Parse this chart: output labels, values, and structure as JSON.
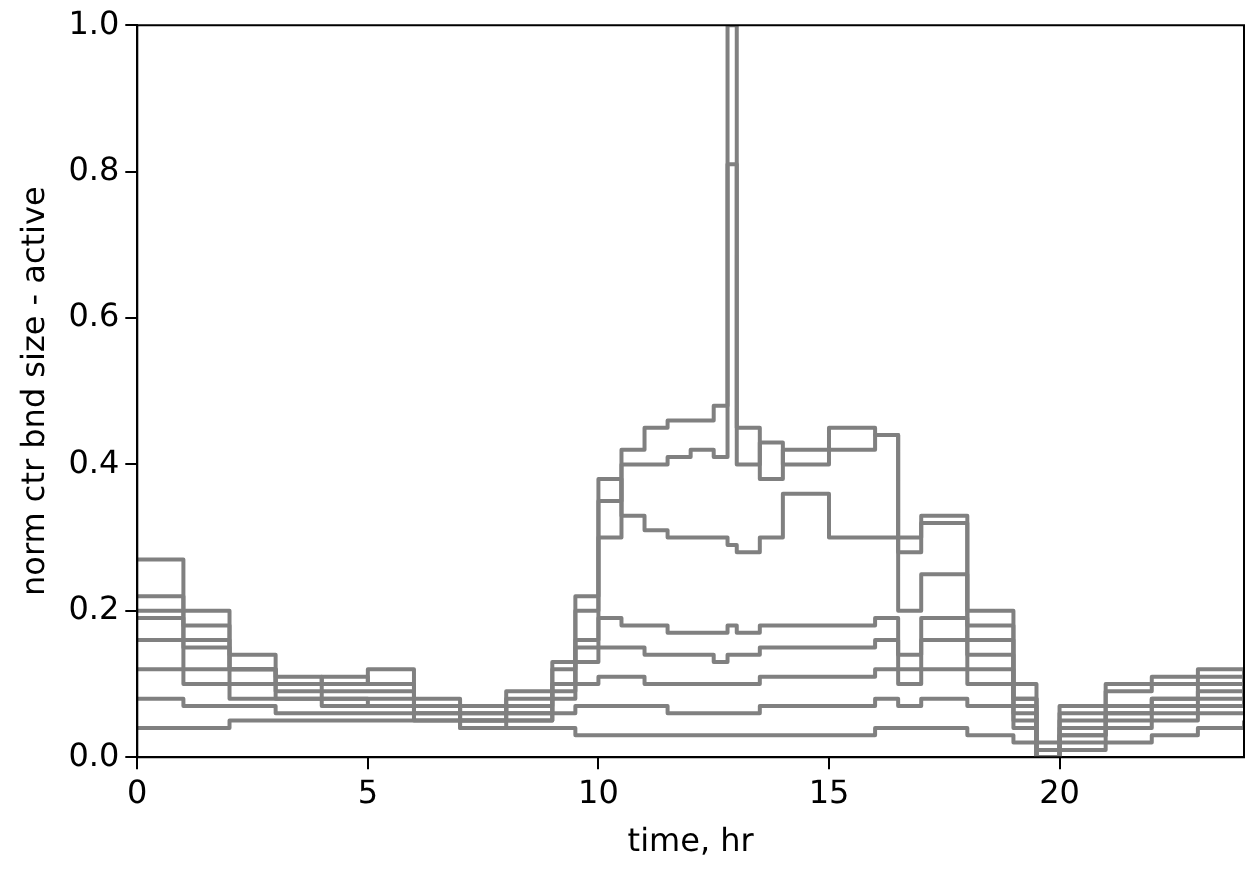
{
  "chart_data": {
    "type": "step",
    "xlabel": "time, hr",
    "ylabel": "norm ctr bnd size - active",
    "x": [
      0,
      1,
      2,
      3,
      4,
      5,
      6,
      7,
      8,
      9,
      9.5,
      10,
      10.5,
      11,
      11.5,
      12,
      12.5,
      12.8,
      13,
      13.5,
      14,
      15,
      16,
      16.5,
      17,
      18,
      19,
      19.5,
      20,
      21,
      22,
      23,
      24
    ],
    "series": [
      {
        "color": "#808080",
        "values": [
          0.2,
          0.18,
          0.12,
          0.1,
          0.09,
          0.09,
          0.07,
          0.06,
          0.07,
          0.12,
          0.15,
          0.3,
          0.42,
          0.45,
          0.46,
          0.46,
          0.48,
          1.0,
          0.45,
          0.38,
          0.42,
          0.45,
          0.44,
          0.3,
          0.33,
          0.2,
          0.1,
          0.0,
          0.07,
          0.1,
          0.11,
          0.12,
          0.12
        ]
      },
      {
        "color": "#808080",
        "values": [
          0.22,
          0.16,
          0.12,
          0.11,
          0.1,
          0.12,
          0.08,
          0.06,
          0.08,
          0.1,
          0.2,
          0.35,
          0.4,
          0.4,
          0.41,
          0.42,
          0.41,
          0.81,
          0.4,
          0.43,
          0.4,
          0.42,
          0.44,
          0.28,
          0.32,
          0.18,
          0.08,
          0.02,
          0.06,
          0.09,
          0.1,
          0.11,
          0.12
        ]
      },
      {
        "color": "#808080",
        "values": [
          0.27,
          0.2,
          0.14,
          0.1,
          0.11,
          0.1,
          0.07,
          0.05,
          0.09,
          0.13,
          0.22,
          0.38,
          0.33,
          0.31,
          0.3,
          0.3,
          0.3,
          0.29,
          0.28,
          0.3,
          0.36,
          0.3,
          0.3,
          0.2,
          0.25,
          0.16,
          0.08,
          0.01,
          0.05,
          0.07,
          0.08,
          0.1,
          0.11
        ]
      },
      {
        "color": "#808080",
        "values": [
          0.19,
          0.15,
          0.12,
          0.08,
          0.08,
          0.08,
          0.07,
          0.07,
          0.06,
          0.1,
          0.16,
          0.19,
          0.18,
          0.18,
          0.17,
          0.17,
          0.17,
          0.18,
          0.17,
          0.18,
          0.18,
          0.18,
          0.19,
          0.12,
          0.19,
          0.14,
          0.07,
          0.01,
          0.04,
          0.06,
          0.07,
          0.09,
          0.1
        ]
      },
      {
        "color": "#808080",
        "values": [
          0.16,
          0.12,
          0.1,
          0.09,
          0.08,
          0.07,
          0.06,
          0.05,
          0.06,
          0.09,
          0.13,
          0.15,
          0.15,
          0.14,
          0.14,
          0.14,
          0.13,
          0.14,
          0.14,
          0.15,
          0.15,
          0.15,
          0.16,
          0.14,
          0.16,
          0.12,
          0.06,
          0.0,
          0.03,
          0.06,
          0.08,
          0.08,
          0.09
        ]
      },
      {
        "color": "#808080",
        "values": [
          0.12,
          0.1,
          0.08,
          0.08,
          0.07,
          0.07,
          0.06,
          0.05,
          0.05,
          0.08,
          0.1,
          0.11,
          0.11,
          0.1,
          0.1,
          0.1,
          0.1,
          0.1,
          0.1,
          0.11,
          0.11,
          0.11,
          0.12,
          0.1,
          0.12,
          0.1,
          0.05,
          0.0,
          0.03,
          0.05,
          0.06,
          0.07,
          0.08
        ]
      },
      {
        "color": "#808080",
        "values": [
          0.08,
          0.07,
          0.07,
          0.06,
          0.06,
          0.06,
          0.05,
          0.04,
          0.05,
          0.06,
          0.07,
          0.07,
          0.07,
          0.07,
          0.06,
          0.06,
          0.06,
          0.06,
          0.06,
          0.07,
          0.07,
          0.07,
          0.08,
          0.07,
          0.08,
          0.07,
          0.04,
          0.0,
          0.02,
          0.04,
          0.05,
          0.06,
          0.06
        ]
      },
      {
        "color": "#808080",
        "values": [
          0.04,
          0.04,
          0.05,
          0.05,
          0.05,
          0.05,
          0.05,
          0.04,
          0.04,
          0.04,
          0.03,
          0.03,
          0.03,
          0.03,
          0.03,
          0.03,
          0.03,
          0.03,
          0.03,
          0.03,
          0.03,
          0.03,
          0.04,
          0.04,
          0.04,
          0.03,
          0.02,
          0.0,
          0.01,
          0.02,
          0.03,
          0.04,
          0.05
        ]
      }
    ],
    "xlim": [
      0,
      24
    ],
    "xticks": [
      0,
      5,
      10,
      15,
      20
    ],
    "ylim": [
      0,
      1.0
    ],
    "yticks": [
      {
        "value": 0,
        "label": "0.0"
      },
      {
        "value": 0.2,
        "label": "0.2"
      },
      {
        "value": 0.4,
        "label": "0.4"
      },
      {
        "value": 0.6,
        "label": "0.6"
      },
      {
        "value": 0.8,
        "label": "0.8"
      },
      {
        "value": 1,
        "label": "1.0"
      }
    ],
    "grid": false,
    "legend": false,
    "marker": "none",
    "line_style": "solid"
  }
}
